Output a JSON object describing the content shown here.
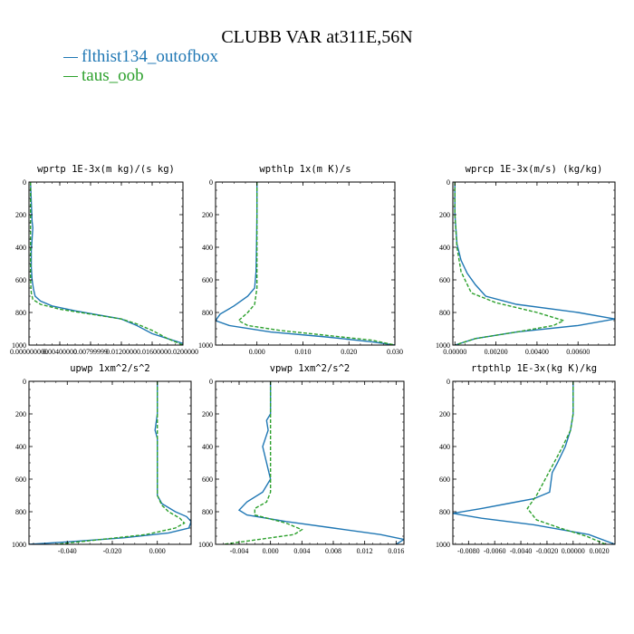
{
  "title": "CLUBB VAR at311E,56N",
  "legend": [
    {
      "name": "flthist134_outofbox",
      "color": "#1f77b4"
    },
    {
      "name": "taus_oob",
      "color": "#2ca02c"
    }
  ],
  "chart_data": [
    {
      "type": "line",
      "title": "wprtp  1E-3x(m kg)/(s kg)",
      "xlim": [
        0,
        0.02
      ],
      "ylim": [
        1000,
        0
      ],
      "xticks": [
        0,
        0.004,
        0.008,
        0.012,
        0.016,
        0.02
      ],
      "xtick_labels": [
        "0.000000000",
        "0.00400000",
        "0.00799999",
        "0.0120000",
        "0.0160000",
        "0.0200000"
      ],
      "yticks": [
        0,
        200,
        400,
        600,
        800,
        1000
      ],
      "ytick_labels": [
        "0",
        "200",
        "400",
        "600",
        "800",
        "1000"
      ],
      "series": [
        {
          "name": "flthist134_outofbox",
          "x": [
            0.0002,
            0.0004,
            0.0005,
            0.0004,
            0.0003,
            0.0003,
            0.0004,
            0.0006,
            0.0008,
            0.0015,
            0.003,
            0.006,
            0.009,
            0.012,
            0.014,
            0.016,
            0.018,
            0.02
          ],
          "y": [
            0,
            240,
            280,
            350,
            420,
            520,
            600,
            660,
            700,
            730,
            760,
            790,
            815,
            840,
            880,
            930,
            960,
            990
          ]
        },
        {
          "name": "taus_oob",
          "x": [
            0.0002,
            0.0002,
            0.0002,
            0.0002,
            0.0002,
            0.0003,
            0.0005,
            0.0015,
            0.004,
            0.008,
            0.012,
            0.014,
            0.016,
            0.018,
            0.02
          ],
          "y": [
            0,
            200,
            350,
            500,
            600,
            680,
            720,
            750,
            780,
            810,
            840,
            870,
            910,
            960,
            1000
          ]
        }
      ]
    },
    {
      "type": "line",
      "title": "wpthlp  1x(m K)/s",
      "xlim": [
        -0.009,
        0.03
      ],
      "ylim": [
        1000,
        0
      ],
      "xticks": [
        0,
        0.01,
        0.02,
        0.03
      ],
      "xtick_labels": [
        "0.000",
        "0.010",
        "0.020",
        "0.030"
      ],
      "yticks": [
        0,
        200,
        400,
        600,
        800,
        1000
      ],
      "ytick_labels": [
        "0",
        "200",
        "400",
        "600",
        "800",
        "1000"
      ],
      "series": [
        {
          "name": "flthist134_outofbox",
          "x": [
            0,
            0,
            -0.0001,
            -0.0002,
            -0.0005,
            -0.002,
            -0.005,
            -0.008,
            -0.009,
            -0.006,
            0.003,
            0.015,
            0.025,
            0.03
          ],
          "y": [
            0,
            200,
            400,
            550,
            650,
            700,
            760,
            810,
            850,
            880,
            920,
            950,
            980,
            1000
          ]
        },
        {
          "name": "taus_oob",
          "x": [
            0,
            0,
            0,
            0,
            -0.0005,
            -0.002,
            -0.004,
            -0.002,
            0.005,
            0.015,
            0.025,
            0.03
          ],
          "y": [
            0,
            200,
            500,
            650,
            750,
            800,
            850,
            880,
            910,
            940,
            970,
            1000
          ]
        }
      ]
    },
    {
      "type": "line",
      "title": "wprcp  1E-3x(m/s) (kg/kg)",
      "xlim": [
        -0.0001,
        0.0078
      ],
      "ylim": [
        1000,
        0
      ],
      "xticks": [
        0,
        0.002,
        0.004,
        0.006
      ],
      "xtick_labels": [
        "0.00000",
        "0.00200",
        "0.00400",
        "0.00600"
      ],
      "yticks": [
        0,
        200,
        400,
        600,
        800,
        1000
      ],
      "ytick_labels": [
        "0",
        "200",
        "400",
        "600",
        "800",
        "1000"
      ],
      "series": [
        {
          "name": "flthist134_outofbox",
          "x": [
            0,
            0,
            0.0001,
            0.0003,
            0.0006,
            0.001,
            0.0015,
            0.003,
            0.006,
            0.0078,
            0.006,
            0.003,
            0.001,
            0
          ],
          "y": [
            0,
            200,
            380,
            480,
            560,
            630,
            700,
            750,
            800,
            840,
            880,
            920,
            960,
            1000
          ]
        },
        {
          "name": "taus_oob",
          "x": [
            0,
            0,
            0.0001,
            0.0003,
            0.0008,
            0.002,
            0.004,
            0.0053,
            0.0048,
            0.003,
            0.001,
            0
          ],
          "y": [
            0,
            200,
            400,
            550,
            680,
            740,
            800,
            850,
            880,
            920,
            960,
            1000
          ]
        }
      ]
    },
    {
      "type": "line",
      "title": "upwp  1xm^2/s^2",
      "xlim": [
        -0.057,
        0.015
      ],
      "ylim": [
        1000,
        0
      ],
      "xticks": [
        -0.04,
        -0.02,
        0
      ],
      "xtick_labels": [
        "-0.040",
        "-0.020",
        "0.000"
      ],
      "yticks": [
        0,
        200,
        400,
        600,
        800,
        1000
      ],
      "ytick_labels": [
        "0",
        "200",
        "400",
        "600",
        "800",
        "1000"
      ],
      "series": [
        {
          "name": "flthist134_outofbox",
          "x": [
            0,
            0,
            -0.001,
            0,
            0,
            0,
            0.002,
            0.008,
            0.013,
            0.015,
            0.014,
            0.005,
            -0.015,
            -0.04,
            -0.057
          ],
          "y": [
            0,
            200,
            300,
            350,
            500,
            700,
            750,
            800,
            830,
            860,
            900,
            930,
            960,
            985,
            1000
          ]
        },
        {
          "name": "taus_oob",
          "x": [
            0,
            0,
            0,
            0,
            0,
            0.002,
            0.005,
            0.01,
            0.012,
            0.008,
            -0.005,
            -0.025,
            -0.045
          ],
          "y": [
            0,
            200,
            350,
            500,
            700,
            760,
            800,
            840,
            870,
            900,
            940,
            970,
            1000
          ]
        }
      ]
    },
    {
      "type": "line",
      "title": "vpwp  1xm^2/s^2",
      "xlim": [
        -0.007,
        0.017
      ],
      "ylim": [
        1000,
        0
      ],
      "xticks": [
        -0.004,
        0,
        0.004,
        0.008,
        0.012,
        0.016
      ],
      "xtick_labels": [
        "-0.004",
        "0.000",
        "0.004",
        "0.008",
        "0.012",
        "0.016"
      ],
      "yticks": [
        0,
        200,
        400,
        600,
        800,
        1000
      ],
      "ytick_labels": [
        "0",
        "200",
        "400",
        "600",
        "800",
        "1000"
      ],
      "series": [
        {
          "name": "flthist134_outofbox",
          "x": [
            0,
            0,
            -0.0005,
            -0.0003,
            -0.001,
            -0.0005,
            0,
            -0.001,
            -0.003,
            -0.004,
            -0.003,
            0.002,
            0.008,
            0.014,
            0.017,
            0.016
          ],
          "y": [
            0,
            200,
            240,
            300,
            400,
            500,
            600,
            680,
            740,
            790,
            820,
            860,
            900,
            940,
            970,
            1000
          ]
        },
        {
          "name": "taus_oob",
          "x": [
            0,
            0,
            0,
            0,
            0,
            -0.0005,
            -0.002,
            -0.002,
            0.002,
            0.004,
            0.003,
            0,
            -0.003,
            -0.006
          ],
          "y": [
            0,
            200,
            400,
            600,
            680,
            740,
            780,
            820,
            870,
            910,
            940,
            960,
            980,
            1000
          ]
        }
      ]
    },
    {
      "type": "line",
      "title": "rtpthlp  1E-3x(kg K)/kg",
      "xlim": [
        -0.0092,
        0.0032
      ],
      "ylim": [
        1000,
        0
      ],
      "xticks": [
        -0.008,
        -0.006,
        -0.004,
        -0.002,
        0,
        0.002
      ],
      "xtick_labels": [
        "-0.0080",
        "-0.0060",
        "-0.0040",
        "-0.0020",
        "0.00000",
        "0.0020"
      ],
      "yticks": [
        0,
        200,
        400,
        600,
        800,
        1000
      ],
      "ytick_labels": [
        "0",
        "200",
        "400",
        "600",
        "800",
        "1000"
      ],
      "series": [
        {
          "name": "flthist134_outofbox",
          "x": [
            0,
            0,
            -0.0002,
            -0.0006,
            -0.0012,
            -0.0016,
            -0.0018,
            -0.003,
            -0.005,
            -0.007,
            -0.0092,
            -0.007,
            -0.003,
            0.0012,
            0.0032
          ],
          "y": [
            0,
            200,
            300,
            400,
            500,
            560,
            680,
            720,
            750,
            780,
            810,
            840,
            880,
            940,
            1000
          ]
        },
        {
          "name": "taus_oob",
          "x": [
            0,
            0,
            -0.0002,
            -0.0008,
            -0.0018,
            -0.0028,
            -0.0035,
            -0.0028,
            -0.001,
            0.001,
            0.0025
          ],
          "y": [
            0,
            200,
            300,
            400,
            550,
            700,
            780,
            850,
            900,
            950,
            1000
          ]
        }
      ]
    }
  ]
}
